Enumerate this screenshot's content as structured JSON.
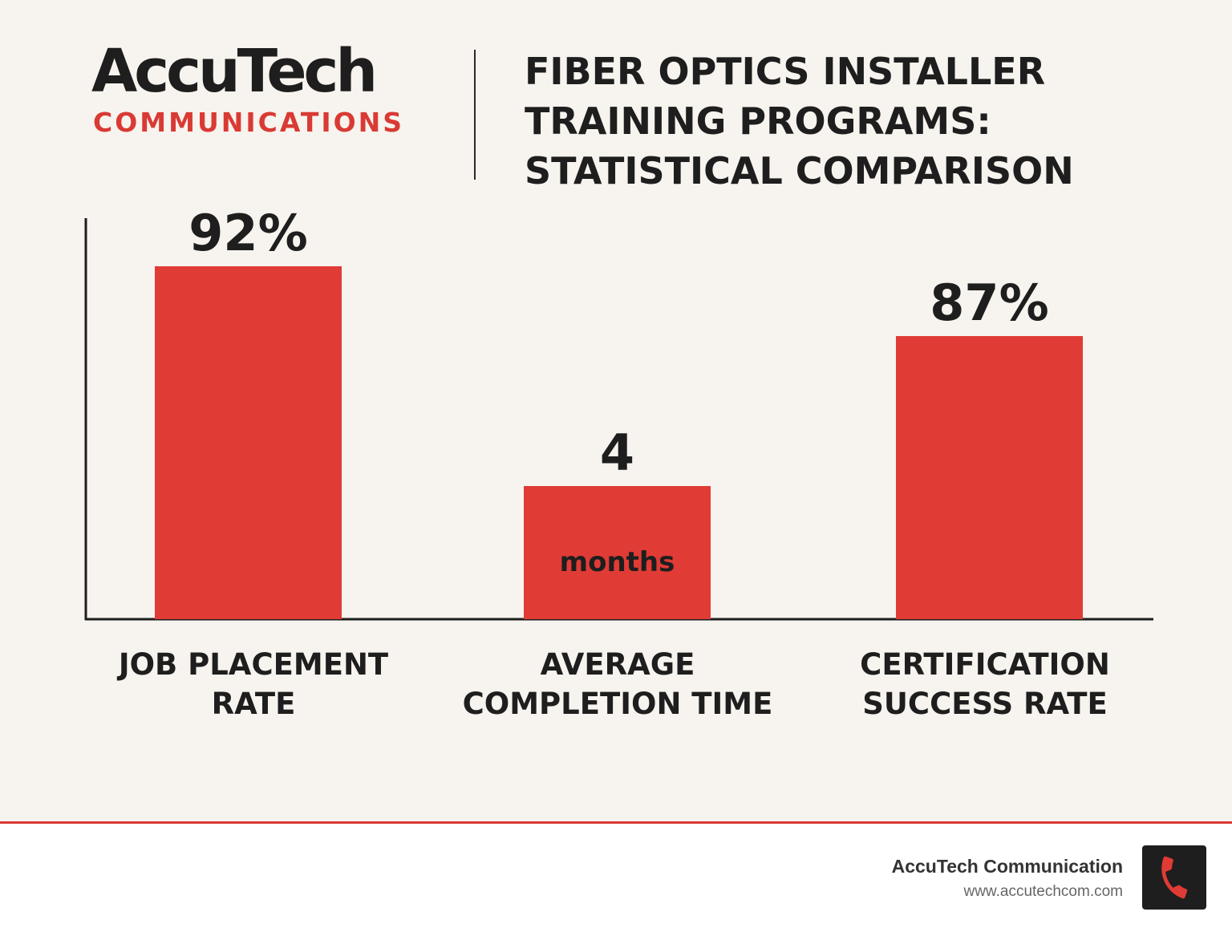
{
  "header": {
    "logo_main": "AccuTech",
    "logo_sub": "COMMUNICATIONS",
    "title_lines": [
      "FIBER OPTICS INSTALLER",
      "TRAINING PROGRAMS:",
      "STATISTICAL COMPARISON"
    ]
  },
  "chart_data": {
    "type": "bar",
    "categories": [
      [
        "JOB PLACEMENT",
        "RATE"
      ],
      [
        "AVERAGE",
        "COMPLETION TIME"
      ],
      [
        "CERTIFICATION",
        "SUCCESS RATE"
      ]
    ],
    "values": [
      92,
      4,
      87
    ],
    "data_labels": [
      "92%",
      "4",
      "87%"
    ],
    "inner_labels": [
      "",
      "months",
      ""
    ],
    "title": "",
    "xlabel": "",
    "ylabel": "",
    "grid": false,
    "bar_color": "#e03b35"
  },
  "footer": {
    "company": "AccuTech Communication",
    "url": "www.accutechcom.com",
    "icon": "phone-icon",
    "icon_color": "#e03b35"
  }
}
